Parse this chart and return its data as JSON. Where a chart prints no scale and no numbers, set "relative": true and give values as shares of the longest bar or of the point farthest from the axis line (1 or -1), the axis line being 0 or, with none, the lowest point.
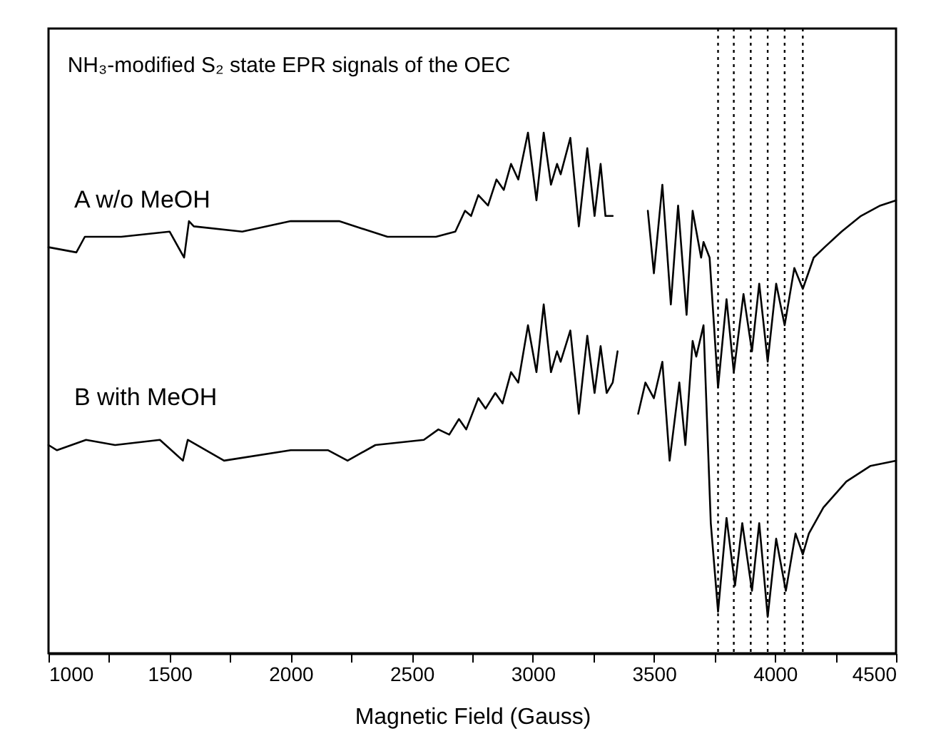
{
  "chart_data": {
    "type": "line",
    "title": "NH₃-modified S₂ state EPR signals of the OEC",
    "xlabel": "Magnetic Field (Gauss)",
    "relative": true,
    "xlim": [
      1000,
      4500
    ],
    "xticks": [
      1000,
      {
        "value": 1250,
        "label": null
      },
      1500,
      {
        "value": 1750,
        "label": null
      },
      2000,
      {
        "value": 2250,
        "label": null
      },
      2500,
      {
        "value": 2750,
        "label": null
      },
      3000,
      {
        "value": 3250,
        "label": null
      },
      3500,
      {
        "value": 3750,
        "label": null
      },
      4000,
      {
        "value": 4250,
        "label": null
      },
      4500
    ],
    "legend": false,
    "marker": "none",
    "line_style": "solid",
    "grid": false,
    "series": [
      {
        "name": "A w/o MeOH",
        "color": "#000000",
        "x": [
          1000,
          1115,
          1150,
          1300,
          1500,
          1560,
          1580,
          1600,
          1800,
          2000,
          2200,
          2400,
          2600,
          2680,
          2720,
          2745,
          2775,
          2815,
          2850,
          2880,
          2910,
          2940,
          2980,
          3015,
          3045,
          3075,
          3100,
          3115,
          3155,
          3190,
          3225,
          3255,
          3280,
          3300,
          3330,
          3400,
          3475,
          3500,
          3535,
          3570,
          3600,
          3635,
          3660,
          3695,
          3705,
          3730,
          3765,
          3800,
          3830,
          3870,
          3905,
          3935,
          3970,
          4005,
          4040,
          4080,
          4115,
          4160,
          4205,
          4275,
          4355,
          4435,
          4500
        ],
        "values": [
          0.78,
          0.77,
          0.8,
          0.8,
          0.81,
          0.76,
          0.83,
          0.82,
          0.81,
          0.83,
          0.83,
          0.8,
          0.8,
          0.81,
          0.85,
          0.84,
          0.88,
          0.86,
          0.91,
          0.89,
          0.94,
          0.91,
          1.0,
          0.87,
          1.0,
          0.9,
          0.94,
          0.92,
          0.99,
          0.82,
          0.97,
          0.84,
          0.94,
          0.84,
          0.84,
          null,
          0.85,
          0.73,
          0.9,
          0.67,
          0.86,
          0.65,
          0.85,
          0.76,
          0.79,
          0.76,
          0.51,
          0.68,
          0.54,
          0.69,
          0.58,
          0.71,
          0.56,
          0.71,
          0.63,
          0.74,
          0.7,
          0.76,
          0.78,
          0.81,
          0.84,
          0.86,
          0.87
        ]
      },
      {
        "name": "B with MeOH",
        "color": "#000000",
        "x": [
          1000,
          1035,
          1155,
          1275,
          1460,
          1555,
          1575,
          1725,
          2000,
          2155,
          2235,
          2350,
          2550,
          2610,
          2655,
          2695,
          2725,
          2775,
          2805,
          2845,
          2875,
          2910,
          2940,
          2980,
          3015,
          3045,
          3075,
          3100,
          3115,
          3155,
          3190,
          3225,
          3255,
          3280,
          3305,
          3330,
          3350,
          3390,
          3435,
          3465,
          3500,
          3535,
          3565,
          3605,
          3630,
          3660,
          3675,
          3705,
          3735,
          3765,
          3800,
          3835,
          3865,
          3905,
          3935,
          3970,
          4005,
          4045,
          4085,
          4115,
          4140,
          4200,
          4295,
          4395,
          4500
        ],
        "values": [
          0.4,
          0.39,
          0.41,
          0.4,
          0.41,
          0.37,
          0.41,
          0.37,
          0.39,
          0.39,
          0.37,
          0.4,
          0.41,
          0.43,
          0.42,
          0.45,
          0.43,
          0.49,
          0.47,
          0.5,
          0.48,
          0.54,
          0.52,
          0.63,
          0.54,
          0.67,
          0.54,
          0.58,
          0.56,
          0.62,
          0.46,
          0.61,
          0.5,
          0.59,
          0.5,
          0.52,
          0.58,
          null,
          0.46,
          0.52,
          0.49,
          0.56,
          0.37,
          0.52,
          0.4,
          0.6,
          0.57,
          0.63,
          0.25,
          0.08,
          0.26,
          0.13,
          0.25,
          0.12,
          0.25,
          0.07,
          0.22,
          0.12,
          0.23,
          0.19,
          0.23,
          0.28,
          0.33,
          0.36,
          0.37
        ]
      }
    ],
    "ref_lines": [
      {
        "axis": "x",
        "value": 3765,
        "color": "#000000",
        "line_style": "dotted"
      },
      {
        "axis": "x",
        "value": 3830,
        "color": "#000000",
        "line_style": "dotted"
      },
      {
        "axis": "x",
        "value": 3900,
        "color": "#000000",
        "line_style": "dotted"
      },
      {
        "axis": "x",
        "value": 3970,
        "color": "#000000",
        "line_style": "dotted"
      },
      {
        "axis": "x",
        "value": 4040,
        "color": "#000000",
        "line_style": "dotted"
      },
      {
        "axis": "x",
        "value": 4115,
        "color": "#000000",
        "line_style": "dotted"
      }
    ]
  }
}
